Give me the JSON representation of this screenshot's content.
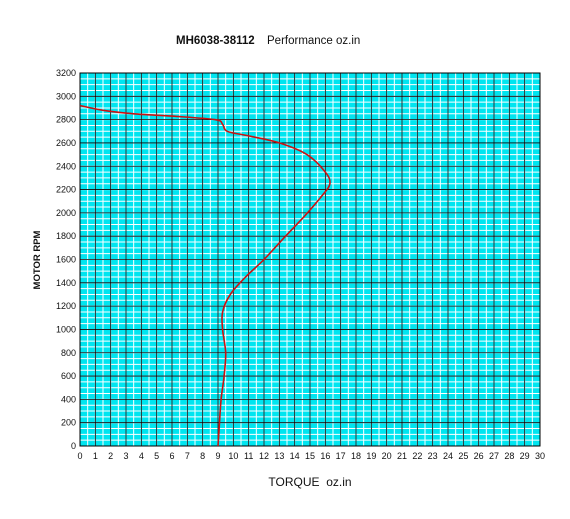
{
  "chart_data": {
    "type": "line",
    "title": "MH6038-38112",
    "subtitle": "Performance oz.in",
    "xlabel": "TORQUE  oz.in",
    "ylabel": "MOTOR RPM",
    "xlim": [
      0,
      30
    ],
    "ylim": [
      0,
      3200
    ],
    "x_ticks": [
      "0",
      "1",
      "2",
      "3",
      "4",
      "5",
      "6",
      "7",
      "8",
      "9",
      "10",
      "11",
      "12",
      "13",
      "14",
      "15",
      "16",
      "17",
      "18",
      "19",
      "20",
      "21",
      "22",
      "23",
      "24",
      "25",
      "26",
      "27",
      "28",
      "29",
      "30"
    ],
    "y_ticks": [
      "0",
      "200",
      "400",
      "600",
      "800",
      "1000",
      "1200",
      "1400",
      "1600",
      "1800",
      "2000",
      "2200",
      "2400",
      "2600",
      "2800",
      "3000",
      "3200"
    ],
    "grid": true,
    "series": [
      {
        "color": "#cc1111",
        "points": [
          {
            "x": 9.0,
            "y": 0
          },
          {
            "x": 9.1,
            "y": 200
          },
          {
            "x": 9.2,
            "y": 400
          },
          {
            "x": 9.4,
            "y": 600
          },
          {
            "x": 9.5,
            "y": 800
          },
          {
            "x": 9.3,
            "y": 1000
          },
          {
            "x": 9.3,
            "y": 1150
          },
          {
            "x": 9.8,
            "y": 1300
          },
          {
            "x": 10.8,
            "y": 1450
          },
          {
            "x": 12.0,
            "y": 1600
          },
          {
            "x": 13.4,
            "y": 1800
          },
          {
            "x": 14.7,
            "y": 1980
          },
          {
            "x": 15.8,
            "y": 2150
          },
          {
            "x": 16.3,
            "y": 2250
          },
          {
            "x": 16.0,
            "y": 2350
          },
          {
            "x": 14.8,
            "y": 2500
          },
          {
            "x": 13.0,
            "y": 2600
          },
          {
            "x": 11.0,
            "y": 2660
          },
          {
            "x": 9.6,
            "y": 2700
          },
          {
            "x": 9.3,
            "y": 2760
          },
          {
            "x": 8.8,
            "y": 2800
          },
          {
            "x": 6.0,
            "y": 2830
          },
          {
            "x": 3.5,
            "y": 2850
          },
          {
            "x": 1.5,
            "y": 2880
          },
          {
            "x": 0.0,
            "y": 2920
          }
        ]
      }
    ],
    "colors": {
      "plot_background": "#00e5f0",
      "minor_grid": "#ffffff",
      "major_grid": "#000000",
      "curve": "#cc1111"
    }
  }
}
